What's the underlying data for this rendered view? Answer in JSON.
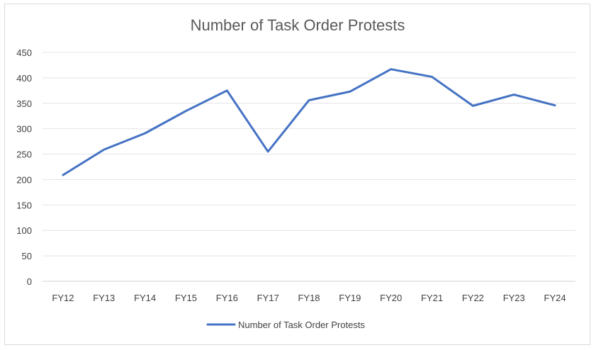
{
  "chart_data": {
    "type": "line",
    "title": "Number of Task Order Protests",
    "xlabel": "",
    "ylabel": "",
    "categories": [
      "FY12",
      "FY13",
      "FY14",
      "FY15",
      "FY16",
      "FY17",
      "FY18",
      "FY19",
      "FY20",
      "FY21",
      "FY22",
      "FY23",
      "FY24"
    ],
    "series": [
      {
        "name": "Number of Task Order Protests",
        "values": [
          209,
          259,
          291,
          335,
          375,
          255,
          356,
          373,
          417,
          402,
          345,
          367,
          346
        ],
        "color": "#4472c4"
      }
    ],
    "ylim": [
      0,
      450
    ],
    "yticks": [
      "0",
      "50",
      "100",
      "150",
      "200",
      "250",
      "300",
      "350",
      "400",
      "450"
    ],
    "grid": true,
    "legend_position": "bottom"
  }
}
